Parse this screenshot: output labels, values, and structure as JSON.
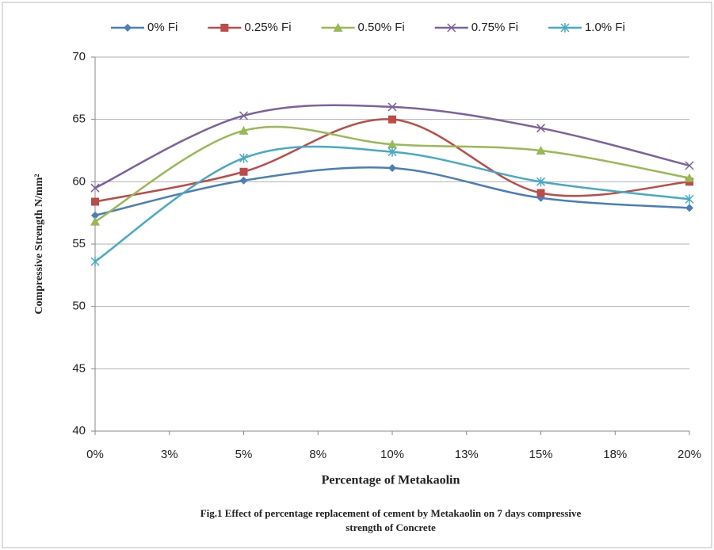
{
  "chart_data": {
    "type": "line",
    "x": [
      0,
      5,
      10,
      15,
      20
    ],
    "series": [
      {
        "name": "0% Fi",
        "color": "#4a7ebb",
        "marker": "diamond",
        "values": [
          57.3,
          60.1,
          61.1,
          58.7,
          57.9
        ]
      },
      {
        "name": "0.25% Fi",
        "color": "#be4b48",
        "marker": "square",
        "values": [
          58.4,
          60.8,
          65.0,
          59.1,
          60.0
        ]
      },
      {
        "name": "0.50% Fi",
        "color": "#98b954",
        "marker": "triangle",
        "values": [
          56.8,
          64.1,
          63.0,
          62.5,
          60.3
        ]
      },
      {
        "name": "0.75% Fi",
        "color": "#7d60a0",
        "marker": "x",
        "values": [
          59.5,
          65.3,
          66.0,
          64.3,
          61.3
        ]
      },
      {
        "name": "1.0% Fi",
        "color": "#46aac5",
        "marker": "asterisk",
        "values": [
          53.6,
          61.9,
          62.4,
          60.0,
          58.6
        ]
      }
    ],
    "xlim": [
      0,
      20
    ],
    "xticks": [
      {
        "value": 0,
        "label": "0%"
      },
      {
        "value": 2.5,
        "label": "3%"
      },
      {
        "value": 5,
        "label": "5%"
      },
      {
        "value": 7.5,
        "label": "8%"
      },
      {
        "value": 10,
        "label": "10%"
      },
      {
        "value": 12.5,
        "label": "13%"
      },
      {
        "value": 15,
        "label": "15%"
      },
      {
        "value": 17.5,
        "label": "18%"
      },
      {
        "value": 20,
        "label": "20%"
      }
    ],
    "ylim": [
      40,
      70
    ],
    "yticks": [
      40,
      45,
      50,
      55,
      60,
      65,
      70
    ],
    "grid": true,
    "smooth": true,
    "legend": "top",
    "xlabel": "Percentage  of  Metakaolin",
    "ylabel": "Compressive Strength N/mm²",
    "caption": [
      "Fig.1 Effect of percentage replacement of cement by Metakaolin on 7 days compressive",
      "strength of Concrete"
    ]
  }
}
